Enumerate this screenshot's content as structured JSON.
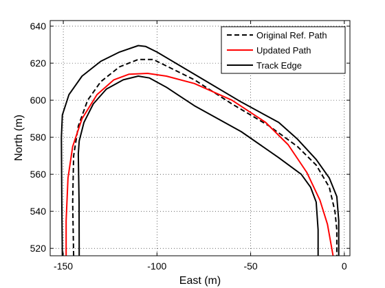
{
  "chart_data": {
    "type": "line",
    "title": "",
    "xlabel": "East (m)",
    "ylabel": "North (m)",
    "xlim": [
      -157,
      3
    ],
    "ylim": [
      516,
      643
    ],
    "xticks": [
      -150,
      -100,
      -50,
      0
    ],
    "yticks": [
      520,
      540,
      560,
      580,
      600,
      620,
      640
    ],
    "grid": true,
    "legend_position": "top-right",
    "series": [
      {
        "name": "Original Ref. Path",
        "color": "#000000",
        "dash": "dashed",
        "points": [
          [
            -144.5,
            516
          ],
          [
            -145,
            545
          ],
          [
            -144.5,
            570
          ],
          [
            -142,
            586
          ],
          [
            -137,
            600
          ],
          [
            -130,
            610
          ],
          [
            -120,
            618
          ],
          [
            -110,
            622
          ],
          [
            -102,
            622
          ],
          [
            -94,
            618
          ],
          [
            -80,
            611
          ],
          [
            -60,
            598
          ],
          [
            -40,
            586
          ],
          [
            -25,
            575
          ],
          [
            -15,
            565
          ],
          [
            -8,
            553
          ],
          [
            -5,
            540
          ],
          [
            -4,
            530
          ],
          [
            -4,
            516
          ]
        ]
      },
      {
        "name": "Updated Path",
        "color": "#ff0000",
        "dash": "solid",
        "points": [
          [
            -148.5,
            516
          ],
          [
            -148.5,
            535
          ],
          [
            -147.5,
            558
          ],
          [
            -145,
            575
          ],
          [
            -140,
            590
          ],
          [
            -132,
            603
          ],
          [
            -123,
            611
          ],
          [
            -115,
            614
          ],
          [
            -105,
            614.5
          ],
          [
            -95,
            613
          ],
          [
            -80,
            609
          ],
          [
            -60,
            600
          ],
          [
            -42,
            588
          ],
          [
            -30,
            576
          ],
          [
            -20,
            561
          ],
          [
            -13,
            546
          ],
          [
            -9,
            533
          ],
          [
            -6,
            516
          ]
        ]
      },
      {
        "name": "Track Edge",
        "color": "#000000",
        "dash": "solid",
        "points": [
          [
            -150.5,
            516
          ],
          [
            -150.8,
            545
          ],
          [
            -151,
            580
          ],
          [
            -150.5,
            592
          ],
          [
            -147,
            603
          ],
          [
            -140,
            613
          ],
          [
            -130,
            621
          ],
          [
            -120,
            626
          ],
          [
            -110,
            629.5
          ],
          [
            -106,
            629
          ],
          [
            -100,
            626
          ],
          [
            -90,
            620
          ],
          [
            -75,
            611
          ],
          [
            -55,
            599
          ],
          [
            -35,
            588
          ],
          [
            -25,
            579
          ],
          [
            -15,
            568
          ],
          [
            -8,
            558
          ],
          [
            -4,
            548
          ],
          [
            -3,
            535
          ],
          [
            -3,
            516
          ]
        ]
      },
      {
        "name": "",
        "color": "#000000",
        "dash": "solid",
        "points": [
          [
            -141.5,
            516
          ],
          [
            -141.6,
            545
          ],
          [
            -142,
            571
          ],
          [
            -141.5,
            578
          ],
          [
            -139,
            588
          ],
          [
            -134,
            598
          ],
          [
            -127,
            606
          ],
          [
            -118,
            611
          ],
          [
            -110,
            613
          ],
          [
            -104,
            612
          ],
          [
            -95,
            607
          ],
          [
            -80,
            597
          ],
          [
            -55,
            583
          ],
          [
            -35,
            569
          ],
          [
            -23,
            560
          ],
          [
            -18,
            553
          ],
          [
            -15,
            545
          ],
          [
            -14,
            530
          ],
          [
            -14,
            516
          ]
        ]
      }
    ]
  }
}
